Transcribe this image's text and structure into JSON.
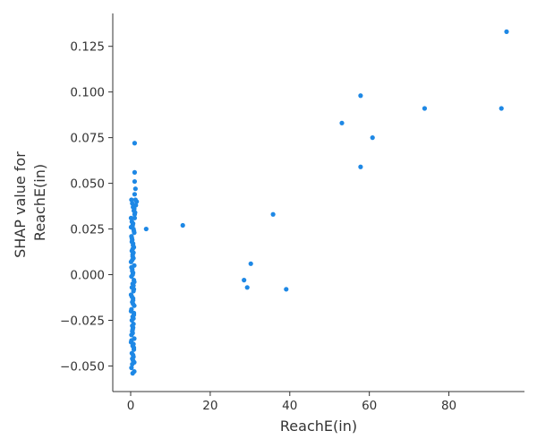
{
  "chart_data": {
    "type": "scatter",
    "title": "",
    "xlabel": "ReachE(in)",
    "ylabel": [
      "SHAP value for",
      "ReachE(in)"
    ],
    "xlim": [
      -4.5,
      99
    ],
    "ylim": [
      -0.064,
      0.143
    ],
    "xticks": [
      0,
      20,
      40,
      60,
      80
    ],
    "yticks": [
      -0.05,
      -0.025,
      0.0,
      0.025,
      0.05,
      0.075,
      0.1,
      0.125
    ],
    "ytick_labels": [
      "−0.050",
      "−0.025",
      "0.000",
      "0.025",
      "0.050",
      "0.075",
      "0.100",
      "0.125"
    ],
    "grid": false,
    "point_color": "#1e88e5",
    "axis_color": "#333333",
    "series": [
      {
        "x": [
          94.5,
          93.2,
          73.9,
          57.8,
          53.1,
          60.8,
          57.8,
          35.8,
          30.2,
          28.5,
          29.3,
          39.1,
          13.1,
          3.9,
          1.0,
          1.0,
          1.0,
          1.2,
          1.0,
          1.5,
          1.2,
          1.3,
          0.9,
          1.1,
          1.0,
          0.2,
          0.4,
          0.6,
          0.8,
          1.0,
          0.1,
          0.3,
          0.5,
          0.7,
          0.9,
          0.2,
          0.4,
          0.6,
          0.8,
          0.3,
          0.5,
          0.7,
          0.1,
          0.9,
          0.4,
          0.6,
          0.2,
          0.8,
          0.5,
          0.3,
          0.7,
          0.1,
          0.6,
          0.4,
          0.9,
          0.2,
          0.8,
          0.5,
          0.3,
          0.7,
          0.6,
          0.4,
          0.2,
          0.9,
          0.1,
          0.5,
          0.8,
          0.3,
          0.7,
          0.6,
          0.4,
          0.2,
          0.9,
          0.5,
          0.1,
          0.8,
          0.3,
          0.6,
          0.7,
          0.4,
          0.2,
          0.5,
          0.9,
          0.8,
          0.3,
          0.6,
          0.1,
          0.7,
          0.4,
          0.5,
          0.2,
          0.8,
          0.6,
          0.9,
          0.3,
          0.5,
          0.4,
          0.7,
          0.6,
          0.8,
          0.5,
          0.7,
          0.4,
          0.6,
          0.5
        ],
        "y": [
          0.133,
          0.091,
          0.091,
          0.098,
          0.083,
          0.075,
          0.059,
          0.033,
          0.006,
          -0.003,
          -0.007,
          -0.008,
          0.027,
          0.025,
          0.072,
          0.056,
          0.051,
          0.047,
          0.044,
          0.04,
          0.041,
          0.038,
          0.036,
          0.034,
          0.031,
          0.041,
          0.039,
          0.037,
          0.035,
          0.033,
          0.031,
          0.029,
          0.027,
          0.025,
          0.023,
          0.021,
          0.019,
          0.017,
          0.015,
          0.013,
          0.011,
          0.009,
          0.007,
          0.005,
          0.003,
          0.001,
          -0.001,
          -0.003,
          -0.005,
          -0.007,
          -0.009,
          -0.011,
          -0.013,
          -0.015,
          -0.017,
          -0.019,
          -0.021,
          -0.023,
          -0.025,
          -0.027,
          -0.029,
          -0.031,
          -0.033,
          -0.035,
          -0.037,
          -0.039,
          -0.041,
          -0.043,
          -0.045,
          -0.047,
          -0.049,
          -0.051,
          -0.053,
          -0.054,
          0.026,
          0.024,
          0.02,
          0.016,
          0.012,
          0.008,
          0.004,
          0.0,
          -0.004,
          -0.008,
          -0.012,
          -0.016,
          -0.02,
          -0.024,
          -0.028,
          -0.032,
          -0.036,
          -0.04,
          -0.044,
          -0.048,
          0.018,
          0.01,
          0.002,
          -0.006,
          -0.014,
          -0.022,
          -0.03,
          -0.038,
          -0.046,
          0.028,
          0.014
        ]
      }
    ]
  }
}
